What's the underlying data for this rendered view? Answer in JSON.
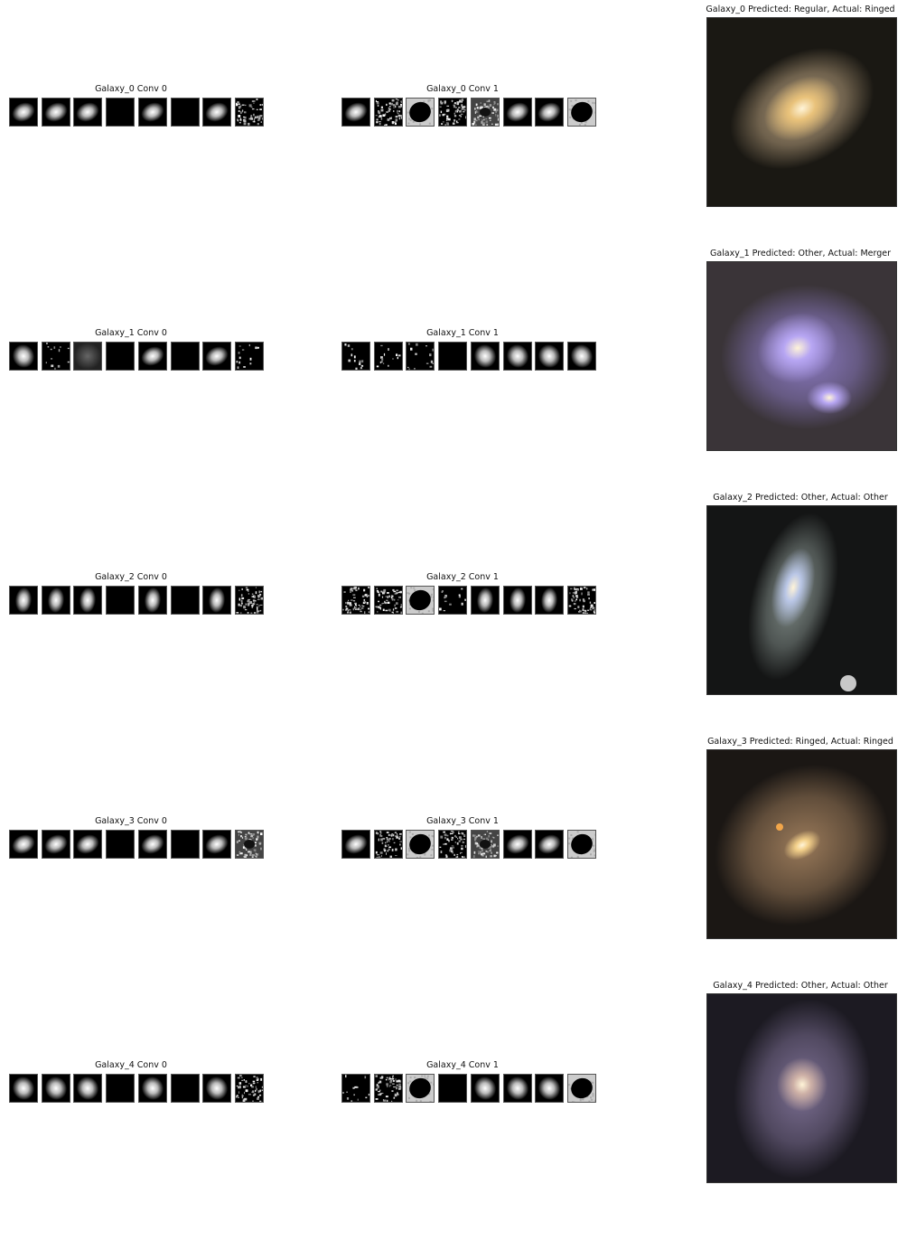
{
  "figure": {
    "rows": [
      {
        "id": "galaxy-0",
        "conv0_title": "Galaxy_0 Conv 0",
        "conv1_title": "Galaxy_0 Conv 1",
        "image_title": "Galaxy_0 Predicted: Regular, Actual: Ringed",
        "conv0_tiles": [
          "blob-tilted",
          "blob-tilted",
          "blob-tilted",
          "dark",
          "blob-tilted",
          "dark",
          "blob-tilted",
          "noise-dark"
        ],
        "conv1_tiles": [
          "blob-tilted",
          "noise-dark",
          "inverted-blob",
          "noise-dark",
          "noise-ring",
          "blob-tilted",
          "blob-tilted",
          "inverted-blob"
        ],
        "galaxy_color": "#e9c27a",
        "galaxy_halo": "#b49d7c",
        "galaxy_bg": "#1a1813"
      },
      {
        "id": "galaxy-1",
        "conv0_title": "Galaxy_1 Conv 0",
        "conv1_title": "Galaxy_1 Conv 1",
        "image_title": "Galaxy_1 Predicted: Other, Actual: Merger",
        "conv0_tiles": [
          "blob-bright",
          "speckle-dark",
          "faint-gray",
          "dark",
          "blob-tilted",
          "dark",
          "blob-tilted",
          "speckle-dark"
        ],
        "conv1_tiles": [
          "speckle-dark",
          "speckle-dark",
          "speckle-dark",
          "dark",
          "blob-bright",
          "blob-bright",
          "blob-bright",
          "blob-bright"
        ],
        "galaxy_color": "#b7a6f3",
        "galaxy_halo": "#8a79c0",
        "galaxy_bg": "#3a3438"
      },
      {
        "id": "galaxy-2",
        "conv0_title": "Galaxy_2 Conv 0",
        "conv1_title": "Galaxy_2 Conv 1",
        "image_title": "Galaxy_2 Predicted: Other, Actual: Other",
        "conv0_tiles": [
          "blob-vertical",
          "blob-vertical",
          "blob-vertical",
          "dark",
          "blob-vertical",
          "dark",
          "blob-vertical",
          "noise-dark"
        ],
        "conv1_tiles": [
          "noise-dark",
          "noise-dark",
          "inverted-blob",
          "speckle-dark",
          "blob-vertical",
          "blob-vertical",
          "blob-vertical",
          "noise-dark"
        ],
        "galaxy_color": "#b9c6e6",
        "galaxy_halo": "#7f8a86",
        "galaxy_bg": "#141515"
      },
      {
        "id": "galaxy-3",
        "conv0_title": "Galaxy_3 Conv 0",
        "conv1_title": "Galaxy_3 Conv 1",
        "image_title": "Galaxy_3 Predicted: Ringed, Actual: Ringed",
        "conv0_tiles": [
          "blob-tilted",
          "blob-tilted",
          "blob-tilted",
          "dark",
          "blob-tilted",
          "dark",
          "blob-tilted",
          "noise-ring"
        ],
        "conv1_tiles": [
          "blob-tilted",
          "noise-dark",
          "inverted-blob",
          "noise-dark",
          "noise-ring",
          "blob-tilted",
          "blob-tilted",
          "inverted-blob"
        ],
        "galaxy_color": "#f3d08a",
        "galaxy_halo": "#9a7a5a",
        "galaxy_bg": "#1b1714"
      },
      {
        "id": "galaxy-4",
        "conv0_title": "Galaxy_4 Conv 0",
        "conv1_title": "Galaxy_4 Conv 1",
        "image_title": "Galaxy_4 Predicted: Other, Actual: Other",
        "conv0_tiles": [
          "blob-bright",
          "blob-bright",
          "blob-bright",
          "dark",
          "blob-bright",
          "dark",
          "blob-bright",
          "noise-dark"
        ],
        "conv1_tiles": [
          "speckle-dark",
          "noise-dark",
          "inverted-blob",
          "dark",
          "blob-bright",
          "blob-bright",
          "blob-bright",
          "inverted-blob"
        ],
        "galaxy_color": "#cdb0a6",
        "galaxy_halo": "#7c6f93",
        "galaxy_bg": "#1c1a22"
      }
    ]
  }
}
